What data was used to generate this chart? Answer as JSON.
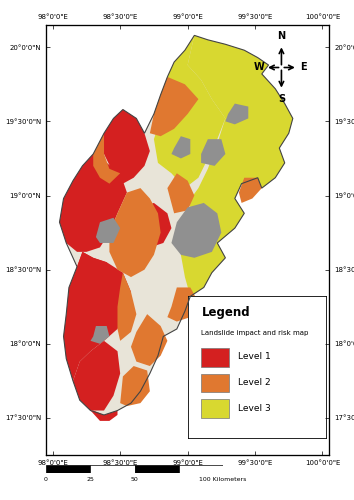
{
  "legend_title": "Legend",
  "legend_subtitle": "Landslide impact and risk map",
  "legend_items": [
    {
      "label": "Level 1",
      "color": "#D42020"
    },
    {
      "label": "Level 2",
      "color": "#E07830"
    },
    {
      "label": "Level 3",
      "color": "#D8D830"
    }
  ],
  "gray_color": "#909090",
  "background_color": "#FFFFFF",
  "map_bg_color": "#FFFFFF",
  "x_ticks": [
    98.0,
    98.5,
    99.0,
    99.5,
    100.0
  ],
  "y_ticks": [
    17.5,
    18.0,
    18.5,
    19.0,
    19.5,
    20.0
  ],
  "x_labels": [
    "98°0'0\"E",
    "98°30'0\"E",
    "99°0'0\"E",
    "99°30'0\"E",
    "100°0'0\"E"
  ],
  "y_labels": [
    "17°30'0\"N",
    "18°0'0\"N",
    "18°30'0\"N",
    "19°0'0\"N",
    "19°30'0\"N",
    "20°0'0\"N"
  ],
  "figsize": [
    3.54,
    5.0
  ],
  "dpi": 100,
  "map_xlim": [
    97.95,
    100.05
  ],
  "map_ylim": [
    17.25,
    20.15
  ]
}
